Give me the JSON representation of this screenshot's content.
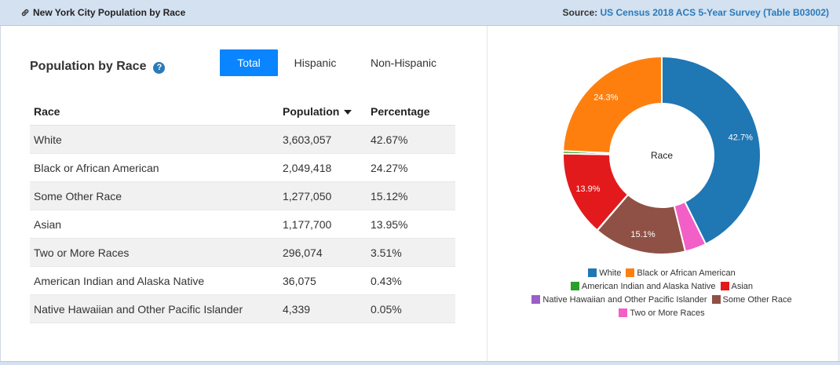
{
  "header": {
    "title": "New York City Population by Race",
    "source_prefix": "Source: ",
    "source_link": "US Census 2018 ACS 5-Year Survey (Table B03002)"
  },
  "panel": {
    "title": "Population by Race",
    "help_glyph": "?"
  },
  "tabs": [
    {
      "label": "Total",
      "active": true
    },
    {
      "label": "Hispanic",
      "active": false
    },
    {
      "label": "Non-Hispanic",
      "active": false
    }
  ],
  "table": {
    "headers": [
      "Race",
      "Population",
      "Percentage"
    ],
    "rows": [
      {
        "race": "White",
        "population": "3,603,057",
        "percentage": "42.67%"
      },
      {
        "race": "Black or African American",
        "population": "2,049,418",
        "percentage": "24.27%"
      },
      {
        "race": "Some Other Race",
        "population": "1,277,050",
        "percentage": "15.12%"
      },
      {
        "race": "Asian",
        "population": "1,177,700",
        "percentage": "13.95%"
      },
      {
        "race": "Two or More Races",
        "population": "296,074",
        "percentage": "3.51%"
      },
      {
        "race": "American Indian and Alaska Native",
        "population": "36,075",
        "percentage": "0.43%"
      },
      {
        "race": "Native Hawaiian and Other Pacific Islander",
        "population": "4,339",
        "percentage": "0.05%"
      }
    ]
  },
  "chart_data": {
    "type": "pie",
    "center_label": "Race",
    "slices": [
      {
        "name": "White",
        "value": 42.67,
        "label": "42.7%",
        "color": "#1f77b4"
      },
      {
        "name": "Two or More Races",
        "value": 3.51,
        "label": "",
        "color": "#f25fc7"
      },
      {
        "name": "Some Other Race",
        "value": 15.12,
        "label": "15.1%",
        "color": "#8f5145"
      },
      {
        "name": "Native Hawaiian and Other Pacific Islander",
        "value": 0.05,
        "label": "",
        "color": "#9a5ec6"
      },
      {
        "name": "Asian",
        "value": 13.95,
        "label": "13.9%",
        "color": "#e31a1c"
      },
      {
        "name": "American Indian and Alaska Native",
        "value": 0.43,
        "label": "",
        "color": "#2ca02c"
      },
      {
        "name": "Black or African American",
        "value": 24.27,
        "label": "24.3%",
        "color": "#ff7f0e"
      }
    ],
    "legend": [
      [
        {
          "name": "White",
          "color": "#1f77b4"
        },
        {
          "name": "Black or African American",
          "color": "#ff7f0e"
        }
      ],
      [
        {
          "name": "American Indian and Alaska Native",
          "color": "#2ca02c"
        },
        {
          "name": "Asian",
          "color": "#e31a1c"
        }
      ],
      [
        {
          "name": "Native Hawaiian and Other Pacific Islander",
          "color": "#9a5ec6"
        },
        {
          "name": "Some Other Race",
          "color": "#8f5145"
        }
      ],
      [
        {
          "name": "Two or More Races",
          "color": "#f25fc7"
        }
      ]
    ]
  }
}
